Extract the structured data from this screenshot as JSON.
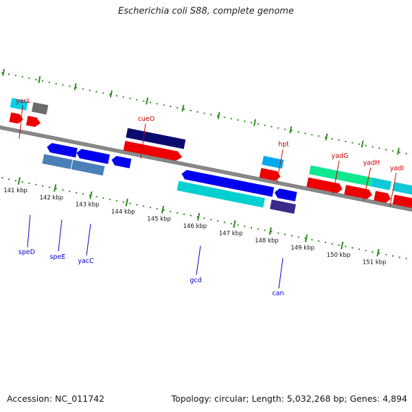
{
  "title": "Escherichia coli S88, complete genome",
  "footer": {
    "accession": "Accession: NC_011742",
    "stats": "Topology: circular; Length: 5,032,268 bp; Genes: 4,894"
  },
  "colors": {
    "backbone": "#888888",
    "tick": "#2a8a1a",
    "label_top": "#cc0000",
    "label_bottom": "#0000cc"
  },
  "kbp_ticks": [
    "141 kbp",
    "142 kbp",
    "143 kbp",
    "144 kbp",
    "145 kbp",
    "146 kbp",
    "147 kbp",
    "148 kbp",
    "149 kbp",
    "150 kbp",
    "151 kbp"
  ],
  "genes_top": [
    {
      "name": "yacL",
      "color": "#cc0000"
    },
    {
      "name": "cueO",
      "color": "#cc0000"
    },
    {
      "name": "hpt",
      "color": "#cc0000"
    },
    {
      "name": "yadG",
      "color": "#cc0000"
    },
    {
      "name": "yadH",
      "color": "#cc0000"
    },
    {
      "name": "yadI",
      "color": "#cc0000"
    }
  ],
  "genes_bottom": [
    {
      "name": "speD",
      "color": "#0000cc"
    },
    {
      "name": "speE",
      "color": "#0000cc"
    },
    {
      "name": "yacC",
      "color": "#0000cc"
    },
    {
      "name": "gcd",
      "color": "#0000cc"
    },
    {
      "name": "can",
      "color": "#0000cc"
    }
  ]
}
